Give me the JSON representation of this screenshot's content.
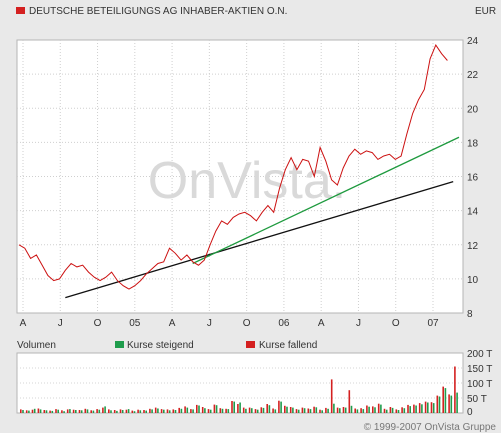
{
  "header": {
    "title": "DEUTSCHE BETEILIGUNGS AG INHABER-AKTIEN O.N.",
    "currency": "EUR"
  },
  "watermark": "OnVista.",
  "legend": {
    "volume_label": "Volumen",
    "rising_label": "Kurse steigend",
    "falling_label": "Kurse fallend"
  },
  "copyright": "© 1999-2007 OnVista Gruppe",
  "colors": {
    "price_line": "#cc1111",
    "rising": "#1f9c4c",
    "falling": "#d42020",
    "support_line": "#111111",
    "trend_line": "#1e9a3e"
  },
  "chart_data": [
    {
      "type": "line",
      "title": "DEUTSCHE BETEILIGUNGS AG INHABER-AKTIEN O.N.",
      "ylabel": "EUR",
      "ylim": [
        8,
        24
      ],
      "y_ticks": [
        8,
        10,
        12,
        14,
        16,
        18,
        20,
        22,
        24
      ],
      "x_ticks": [
        "A",
        "J",
        "O",
        "05",
        "A",
        "J",
        "O",
        "06",
        "A",
        "J",
        "O",
        "07"
      ],
      "grid": true,
      "series": [
        {
          "points": [
            [
              0,
              12.0
            ],
            [
              1,
              11.8
            ],
            [
              2,
              11.2
            ],
            [
              3,
              11.4
            ],
            [
              4,
              10.8
            ],
            [
              5,
              10.2
            ],
            [
              6,
              9.9
            ],
            [
              7,
              10.0
            ],
            [
              8,
              10.5
            ],
            [
              9,
              10.9
            ],
            [
              10,
              10.7
            ],
            [
              11,
              10.8
            ],
            [
              12,
              10.4
            ],
            [
              13,
              10.1
            ],
            [
              14,
              9.9
            ],
            [
              15,
              10.1
            ],
            [
              16,
              10.4
            ],
            [
              17,
              9.9
            ],
            [
              18,
              9.6
            ],
            [
              19,
              9.4
            ],
            [
              20,
              9.6
            ],
            [
              21,
              9.9
            ],
            [
              22,
              10.3
            ],
            [
              23,
              10.6
            ],
            [
              24,
              10.9
            ],
            [
              25,
              11.0
            ],
            [
              26,
              11.8
            ],
            [
              27,
              11.5
            ],
            [
              28,
              11.1
            ],
            [
              29,
              11.4
            ],
            [
              30,
              11.0
            ],
            [
              31,
              10.8
            ],
            [
              32,
              11.1
            ],
            [
              33,
              12.0
            ],
            [
              34,
              12.8
            ],
            [
              35,
              13.4
            ],
            [
              36,
              13.2
            ],
            [
              37,
              13.6
            ],
            [
              38,
              13.8
            ],
            [
              39,
              13.9
            ],
            [
              40,
              13.7
            ],
            [
              41,
              13.4
            ],
            [
              42,
              13.9
            ],
            [
              43,
              14.3
            ],
            [
              44,
              13.9
            ],
            [
              45,
              15.3
            ],
            [
              46,
              16.4
            ],
            [
              47,
              17.1
            ],
            [
              48,
              16.4
            ],
            [
              49,
              17.0
            ],
            [
              50,
              16.9
            ],
            [
              51,
              16.0
            ],
            [
              52,
              17.7
            ],
            [
              53,
              16.9
            ],
            [
              54,
              15.8
            ],
            [
              55,
              15.5
            ],
            [
              56,
              16.5
            ],
            [
              57,
              17.2
            ],
            [
              58,
              17.6
            ],
            [
              59,
              17.3
            ],
            [
              60,
              17.5
            ],
            [
              61,
              17.4
            ],
            [
              62,
              17.0
            ],
            [
              63,
              17.2
            ],
            [
              64,
              17.3
            ],
            [
              65,
              17.0
            ],
            [
              66,
              17.2
            ],
            [
              67,
              18.5
            ],
            [
              68,
              19.7
            ],
            [
              69,
              20.5
            ],
            [
              70,
              21.1
            ],
            [
              71,
              22.9
            ],
            [
              72,
              23.7
            ],
            [
              73,
              23.2
            ],
            [
              74,
              22.8
            ]
          ]
        }
      ],
      "trend_lines": [
        {
          "name": "support",
          "from": [
            8,
            8.9
          ],
          "to": [
            75,
            15.7
          ]
        },
        {
          "name": "trend",
          "from": [
            30,
            10.9
          ],
          "to": [
            76,
            18.3
          ]
        }
      ]
    },
    {
      "type": "bar",
      "ylabel": "Volumen",
      "ylim": [
        0,
        200
      ],
      "y_tick_labels": [
        "0",
        "50 T",
        "100 T",
        "150 T",
        "200 T"
      ],
      "series": [
        {
          "name": "Kurse steigend",
          "values": [
            10,
            8,
            14,
            12,
            9,
            7,
            11,
            6,
            13,
            10,
            9,
            12,
            8,
            11,
            22,
            9,
            7,
            10,
            13,
            6,
            9,
            8,
            12,
            15,
            11,
            9,
            10,
            14,
            18,
            12,
            25,
            16,
            11,
            26,
            14,
            13,
            38,
            35,
            14,
            16,
            11,
            17,
            26,
            12,
            38,
            21,
            18,
            11,
            16,
            13,
            19,
            9,
            14,
            31,
            16,
            18,
            24,
            12,
            13,
            21,
            19,
            28,
            11,
            17,
            10,
            16,
            23,
            25,
            29,
            35,
            33,
            55,
            83,
            58,
            68
          ]
        },
        {
          "name": "Kurse fallend",
          "values": [
            12,
            9,
            11,
            15,
            10,
            8,
            13,
            9,
            12,
            11,
            10,
            14,
            9,
            13,
            18,
            12,
            10,
            12,
            11,
            8,
            11,
            10,
            14,
            18,
            13,
            12,
            12,
            17,
            22,
            13,
            27,
            20,
            13,
            28,
            16,
            14,
            40,
            30,
            18,
            18,
            13,
            19,
            30,
            15,
            41,
            24,
            20,
            13,
            18,
            15,
            21,
            11,
            17,
            112,
            18,
            20,
            76,
            15,
            16,
            25,
            22,
            31,
            14,
            20,
            12,
            19,
            27,
            28,
            33,
            38,
            36,
            58,
            88,
            62,
            155
          ]
        }
      ]
    }
  ]
}
